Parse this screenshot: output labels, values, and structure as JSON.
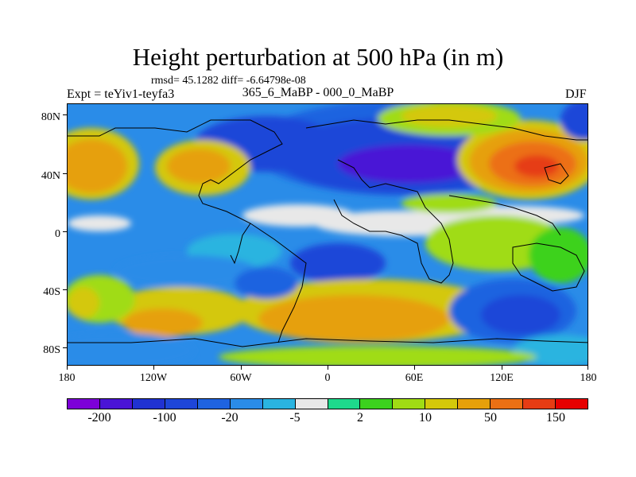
{
  "title": "Height perturbation at 500 hPa (in m)",
  "stats": "rmsd= 45.1282 diff= -6.64798e-08",
  "experiment": "Expt = teYiv1-teyfa3",
  "subtitle": "365_6_MaBP - 000_0_MaBP",
  "season": "DJF",
  "map": {
    "lat_labels": [
      "80N",
      "40N",
      "0",
      "40S",
      "80S"
    ],
    "lon_labels": [
      "180",
      "120W",
      "60W",
      "0",
      "60E",
      "120E",
      "180"
    ],
    "lat_range": [
      -90,
      90
    ],
    "lon_range": [
      -180,
      180
    ]
  },
  "colorbar": {
    "colors": [
      "#7d00d8",
      "#4a14d6",
      "#2032d2",
      "#1e46d8",
      "#1f63e0",
      "#2a8ce8",
      "#2ab4e0",
      "#e8e8e8",
      "#1ed98c",
      "#3cd21e",
      "#a0dc14",
      "#d4c80a",
      "#e6a00a",
      "#ec7014",
      "#e63c14",
      "#e60000"
    ],
    "labels": [
      "-200",
      "-100",
      "-20",
      "-5",
      "2",
      "10",
      "50",
      "150"
    ]
  }
}
